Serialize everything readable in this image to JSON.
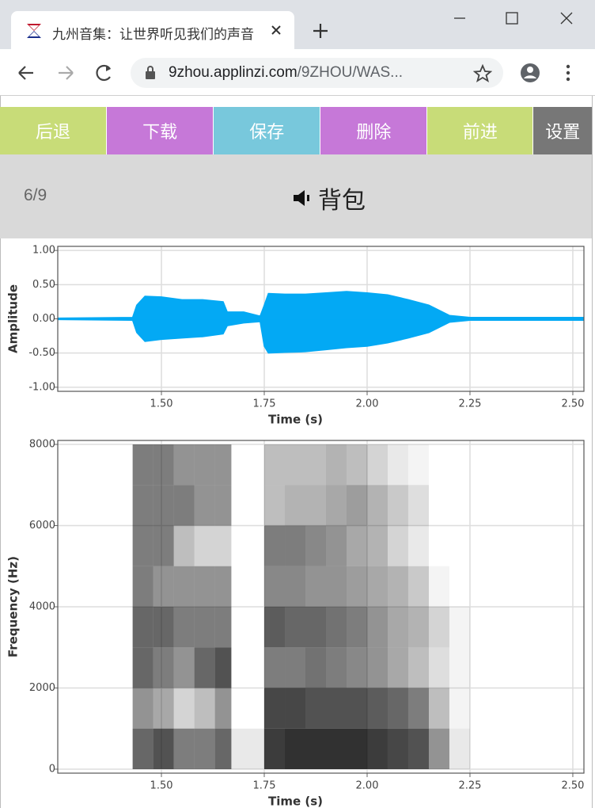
{
  "browser": {
    "tab_title": "九州音集：让世界听见我们的声音",
    "url_host": "9zhou.applinzi.com",
    "url_path": "/9ZHOU/WAS..."
  },
  "toolbar": {
    "buttons": [
      {
        "label": "后退",
        "color": "#c8dc78"
      },
      {
        "label": "下载",
        "color": "#c678d8"
      },
      {
        "label": "保存",
        "color": "#78c8dc"
      },
      {
        "label": "删除",
        "color": "#c678d8"
      },
      {
        "label": "前进",
        "color": "#c8dc78"
      },
      {
        "label": "设置",
        "color": "#777777"
      }
    ]
  },
  "info": {
    "counter": "6/9",
    "word": "背包"
  },
  "chart_data": [
    {
      "type": "area",
      "x_label": "Time (s)",
      "y_label": "Amplitude",
      "x": [
        1.25,
        1.43,
        1.44,
        1.46,
        1.5,
        1.55,
        1.6,
        1.65,
        1.66,
        1.7,
        1.74,
        1.75,
        1.76,
        1.8,
        1.85,
        1.9,
        1.95,
        2.0,
        2.05,
        2.1,
        2.15,
        2.2,
        2.25,
        2.527
      ],
      "series": [
        {
          "color": "#03a9f4",
          "values": [
            0.01,
            0.02,
            0.2,
            0.33,
            0.32,
            0.28,
            0.28,
            0.25,
            0.1,
            0.1,
            0.04,
            0.2,
            0.37,
            0.36,
            0.36,
            0.38,
            0.4,
            0.38,
            0.35,
            0.28,
            0.2,
            0.05,
            0.02,
            0.02
          ]
        },
        {
          "color": "#03a9f4",
          "values": [
            -0.01,
            -0.02,
            -0.2,
            -0.33,
            -0.3,
            -0.28,
            -0.26,
            -0.22,
            -0.1,
            -0.06,
            -0.04,
            -0.4,
            -0.5,
            -0.49,
            -0.48,
            -0.45,
            -0.42,
            -0.4,
            -0.35,
            -0.28,
            -0.2,
            -0.05,
            -0.02,
            -0.02
          ]
        }
      ],
      "xlim": [
        1.248,
        2.527
      ],
      "ylim": [
        -1.06,
        1.06
      ],
      "xticks": [
        {
          "value": 1.5,
          "label": "1.50"
        },
        {
          "value": 1.75,
          "label": "1.75"
        },
        {
          "value": 2,
          "label": "2.00"
        },
        {
          "value": 2.25,
          "label": "2.25"
        },
        {
          "value": 2.5,
          "label": "2.50"
        }
      ],
      "yticks": [
        {
          "value": 1,
          "label": "1.00"
        },
        {
          "value": 0.5,
          "label": "0.50"
        },
        {
          "value": 0,
          "label": "0.00"
        },
        {
          "value": -0.5,
          "label": "-0.50"
        },
        {
          "value": -1,
          "label": "-1.00"
        }
      ],
      "grid": true
    },
    {
      "type": "heatmap",
      "x_label": "Time (s)",
      "y_label": "Frequency (Hz)",
      "color": "#000000",
      "x_bins": [
        1.43,
        1.48,
        1.53,
        1.58,
        1.63,
        1.67,
        1.75,
        1.8,
        1.85,
        1.9,
        1.95,
        2.0,
        2.05,
        2.1,
        2.15,
        2.2,
        2.25
      ],
      "y_bins": [
        0,
        1000,
        2000,
        3000,
        4000,
        5000,
        6000,
        7000,
        8000
      ],
      "values": [
        [
          0.7,
          0.8,
          0.6,
          0.6,
          0.7,
          0.1,
          0.9,
          0.95,
          0.95,
          0.95,
          0.95,
          0.9,
          0.85,
          0.8,
          0.5,
          0.1
        ],
        [
          0.5,
          0.4,
          0.2,
          0.3,
          0.5,
          0,
          0.85,
          0.85,
          0.8,
          0.8,
          0.8,
          0.75,
          0.7,
          0.6,
          0.3,
          0.05
        ],
        [
          0.7,
          0.6,
          0.5,
          0.7,
          0.8,
          0,
          0.6,
          0.6,
          0.65,
          0.6,
          0.55,
          0.5,
          0.4,
          0.3,
          0.15,
          0.05
        ],
        [
          0.7,
          0.7,
          0.6,
          0.6,
          0.6,
          0,
          0.75,
          0.7,
          0.7,
          0.65,
          0.6,
          0.5,
          0.4,
          0.35,
          0.2,
          0.05
        ],
        [
          0.6,
          0.5,
          0.5,
          0.5,
          0.5,
          0,
          0.55,
          0.55,
          0.5,
          0.5,
          0.45,
          0.4,
          0.35,
          0.25,
          0.05,
          0
        ],
        [
          0.6,
          0.6,
          0.3,
          0.2,
          0.2,
          0,
          0.6,
          0.6,
          0.55,
          0.5,
          0.4,
          0.35,
          0.2,
          0.1,
          0,
          0
        ],
        [
          0.6,
          0.6,
          0.6,
          0.5,
          0.5,
          0,
          0.3,
          0.35,
          0.35,
          0.4,
          0.45,
          0.35,
          0.25,
          0.15,
          0,
          0
        ],
        [
          0.6,
          0.6,
          0.5,
          0.5,
          0.5,
          0,
          0.3,
          0.3,
          0.3,
          0.35,
          0.3,
          0.2,
          0.1,
          0.05,
          0,
          0
        ]
      ],
      "xlim": [
        1.248,
        2.527
      ],
      "ylim": [
        -98,
        8098
      ],
      "xticks": [
        {
          "value": 1.5,
          "label": "1.50"
        },
        {
          "value": 1.75,
          "label": "1.75"
        },
        {
          "value": 2,
          "label": "2.00"
        },
        {
          "value": 2.25,
          "label": "2.25"
        },
        {
          "value": 2.5,
          "label": "2.50"
        }
      ],
      "yticks": [
        0,
        2000,
        4000,
        6000,
        8000
      ],
      "grid": true
    }
  ]
}
